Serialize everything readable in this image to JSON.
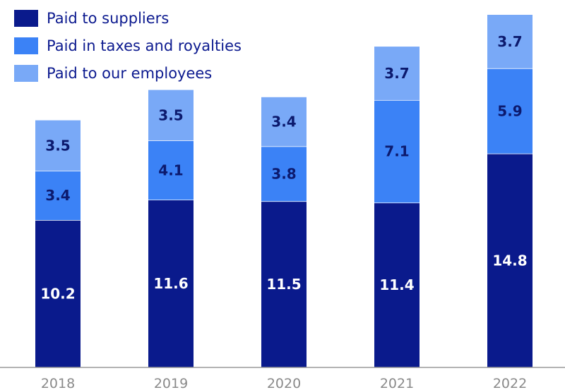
{
  "chart_data": {
    "type": "bar",
    "stacked": true,
    "categories": [
      "2018",
      "2019",
      "2020",
      "2021",
      "2022"
    ],
    "series": [
      {
        "name": "Paid to suppliers",
        "values": [
          10.2,
          11.6,
          11.5,
          11.4,
          14.8
        ],
        "color": "#0a1a8c",
        "label_color": "#ffffff"
      },
      {
        "name": "Paid in taxes and royalties",
        "values": [
          3.4,
          4.1,
          3.8,
          7.1,
          5.9
        ],
        "color": "#3b82f6",
        "label_color": "#0c1a6e"
      },
      {
        "name": "Paid to our employees",
        "values": [
          3.5,
          3.5,
          3.4,
          3.7,
          3.7
        ],
        "color": "#79a9f7",
        "label_color": "#0c1a6e"
      }
    ],
    "title": "",
    "xlabel": "",
    "ylabel": "",
    "ylim": [
      0,
      24.4
    ],
    "grid": false,
    "legend_position": "top-left"
  }
}
